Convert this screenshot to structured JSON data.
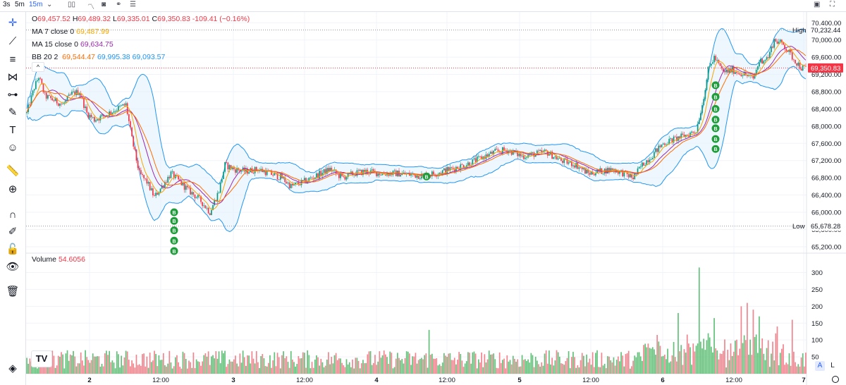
{
  "toolbar": {
    "timeframes": [
      "3s",
      "5m",
      "15m"
    ],
    "active_timeframe": "15m",
    "icons": [
      "chevron-down-icon",
      "candles-icon",
      "indicators-icon",
      "camera-icon",
      "compare-icon",
      "list-icon"
    ],
    "right_icons": [
      "snapshot-icon",
      "fullscreen-icon"
    ]
  },
  "sidebar": {
    "icons": [
      "crosshair-icon",
      "trendline-icon",
      "fib-icon",
      "pattern-icon",
      "prediction-icon",
      "brush-icon",
      "text-icon",
      "emoji-icon",
      "ruler-icon",
      "zoom-in-icon",
      "magnet-icon",
      "lock-drawings-icon",
      "lock-icon",
      "eye-icon",
      "trash-icon",
      "layers-icon"
    ]
  },
  "legend": {
    "ohlc": {
      "o_label": "O",
      "o": "69,457.52",
      "h_label": "H",
      "h": "69,489.32",
      "l_label": "L",
      "l": "69,335.01",
      "c_label": "C",
      "c": "69,350.83",
      "change": "-109.41 (−0.16%)"
    },
    "ma7": {
      "label": "MA 7 close 0",
      "value": "69,487.99"
    },
    "ma15": {
      "label": "MA 15 close 0",
      "value": "69,634.75"
    },
    "bb": {
      "label": "BB 20 2",
      "basis": "69,544.47",
      "upper": "69,995.38",
      "lower": "69,093.57"
    },
    "collapse": "^"
  },
  "volume": {
    "label": "Volume",
    "value": "54.6056"
  },
  "scale_buttons": {
    "auto": "A",
    "log": "L"
  },
  "logo": "TV",
  "colors": {
    "up": "#089981",
    "down": "#f23645",
    "ma7": "#f7a600",
    "ma15": "#9c27b0",
    "bb_basis": "#ff6d00",
    "bb_band": "#2196f3",
    "bb_fill": "#e3f2fd",
    "buy_marker": "#1e9e3a",
    "price_tag": "#f23645",
    "grid": "#f0f3fa",
    "vol_up": "#63c17a",
    "vol_down": "#f0858e"
  },
  "chart_data": [
    {
      "type": "candlestick",
      "title": "",
      "x_ticks": [
        "2",
        "12:00",
        "3",
        "12:00",
        "4",
        "12:00",
        "5",
        "12:00",
        "6",
        "12:00",
        "7"
      ],
      "y_ticks": [
        "70,400.00",
        "70,000.00",
        "69,600.00",
        "69,200.00",
        "68,800.00",
        "68,400.00",
        "68,000.00",
        "67,600.00",
        "67,200.00",
        "66,800.00",
        "66,400.00",
        "66,000.00",
        "65,600.00",
        "65,200.00"
      ],
      "y_tick_values": [
        70400,
        70000,
        69600,
        69200,
        68800,
        68400,
        68000,
        67600,
        67200,
        66800,
        66400,
        66000,
        65600,
        65200
      ],
      "ylim": [
        65050,
        70650
      ],
      "high": {
        "label": "High",
        "value": 70232.44,
        "text": "70,232.44"
      },
      "low": {
        "label": "Low",
        "value": 65678.28,
        "text": "65,678.28"
      },
      "last_price": {
        "value": 69350.83,
        "text": "69,350.83"
      },
      "buy_marker_label": "B",
      "price_path": [
        [
          0,
          68300
        ],
        [
          5,
          68900
        ],
        [
          8,
          69150
        ],
        [
          12,
          68700
        ],
        [
          18,
          68600
        ],
        [
          24,
          68500
        ],
        [
          30,
          68750
        ],
        [
          35,
          68800
        ],
        [
          40,
          68300
        ],
        [
          45,
          68150
        ],
        [
          52,
          68250
        ],
        [
          60,
          68400
        ],
        [
          66,
          68500
        ],
        [
          70,
          67700
        ],
        [
          75,
          66900
        ],
        [
          80,
          66700
        ],
        [
          85,
          66350
        ],
        [
          90,
          66600
        ],
        [
          96,
          66900
        ],
        [
          102,
          66700
        ],
        [
          108,
          66500
        ],
        [
          115,
          66300
        ],
        [
          122,
          66000
        ],
        [
          128,
          66500
        ],
        [
          132,
          67100
        ],
        [
          138,
          67000
        ],
        [
          146,
          66950
        ],
        [
          154,
          67000
        ],
        [
          162,
          66900
        ],
        [
          170,
          66800
        ],
        [
          176,
          66600
        ],
        [
          184,
          66700
        ],
        [
          190,
          66800
        ],
        [
          196,
          66900
        ],
        [
          202,
          67000
        ],
        [
          210,
          66800
        ],
        [
          218,
          66900
        ],
        [
          226,
          66950
        ],
        [
          236,
          66900
        ],
        [
          248,
          66900
        ],
        [
          262,
          66850
        ],
        [
          272,
          66900
        ],
        [
          282,
          67000
        ],
        [
          292,
          67100
        ],
        [
          302,
          67250
        ],
        [
          312,
          67400
        ],
        [
          320,
          67450
        ],
        [
          330,
          67300
        ],
        [
          338,
          67350
        ],
        [
          346,
          67400
        ],
        [
          356,
          67200
        ],
        [
          366,
          67100
        ],
        [
          374,
          66900
        ],
        [
          382,
          66950
        ],
        [
          390,
          67000
        ],
        [
          398,
          66900
        ],
        [
          404,
          66800
        ],
        [
          410,
          67100
        ],
        [
          416,
          67300
        ],
        [
          424,
          67600
        ],
        [
          432,
          67700
        ],
        [
          440,
          67800
        ],
        [
          446,
          67900
        ],
        [
          450,
          68500
        ],
        [
          454,
          69300
        ],
        [
          458,
          69600
        ],
        [
          464,
          69250
        ],
        [
          470,
          69300
        ],
        [
          478,
          69200
        ],
        [
          484,
          69100
        ],
        [
          488,
          69500
        ],
        [
          494,
          69600
        ],
        [
          498,
          70000
        ],
        [
          504,
          69900
        ],
        [
          510,
          69600
        ],
        [
          516,
          69350
        ]
      ],
      "buy_marker_prices": [
        66000,
        65800,
        65580,
        65340,
        65100,
        66830,
        68950,
        68680,
        68400,
        68150,
        67950,
        67700,
        67470
      ]
    },
    {
      "type": "bar",
      "title": "Volume",
      "y_ticks": [
        "300",
        "250",
        "200",
        "150",
        "100",
        "50"
      ],
      "y_tick_values": [
        300,
        250,
        200,
        150,
        100,
        50
      ],
      "ylim": [
        0,
        345
      ],
      "spikes": [
        {
          "bar": 268,
          "value": 130
        },
        {
          "bar": 420,
          "value": 115
        },
        {
          "bar": 434,
          "value": 180
        },
        {
          "bar": 448,
          "value": 315
        },
        {
          "bar": 454,
          "value": 120
        },
        {
          "bar": 458,
          "value": 165
        },
        {
          "bar": 476,
          "value": 200
        },
        {
          "bar": 480,
          "value": 210
        },
        {
          "bar": 484,
          "value": 190
        },
        {
          "bar": 488,
          "value": 170
        },
        {
          "bar": 500,
          "value": 140
        },
        {
          "bar": 510,
          "value": 160
        }
      ]
    }
  ]
}
